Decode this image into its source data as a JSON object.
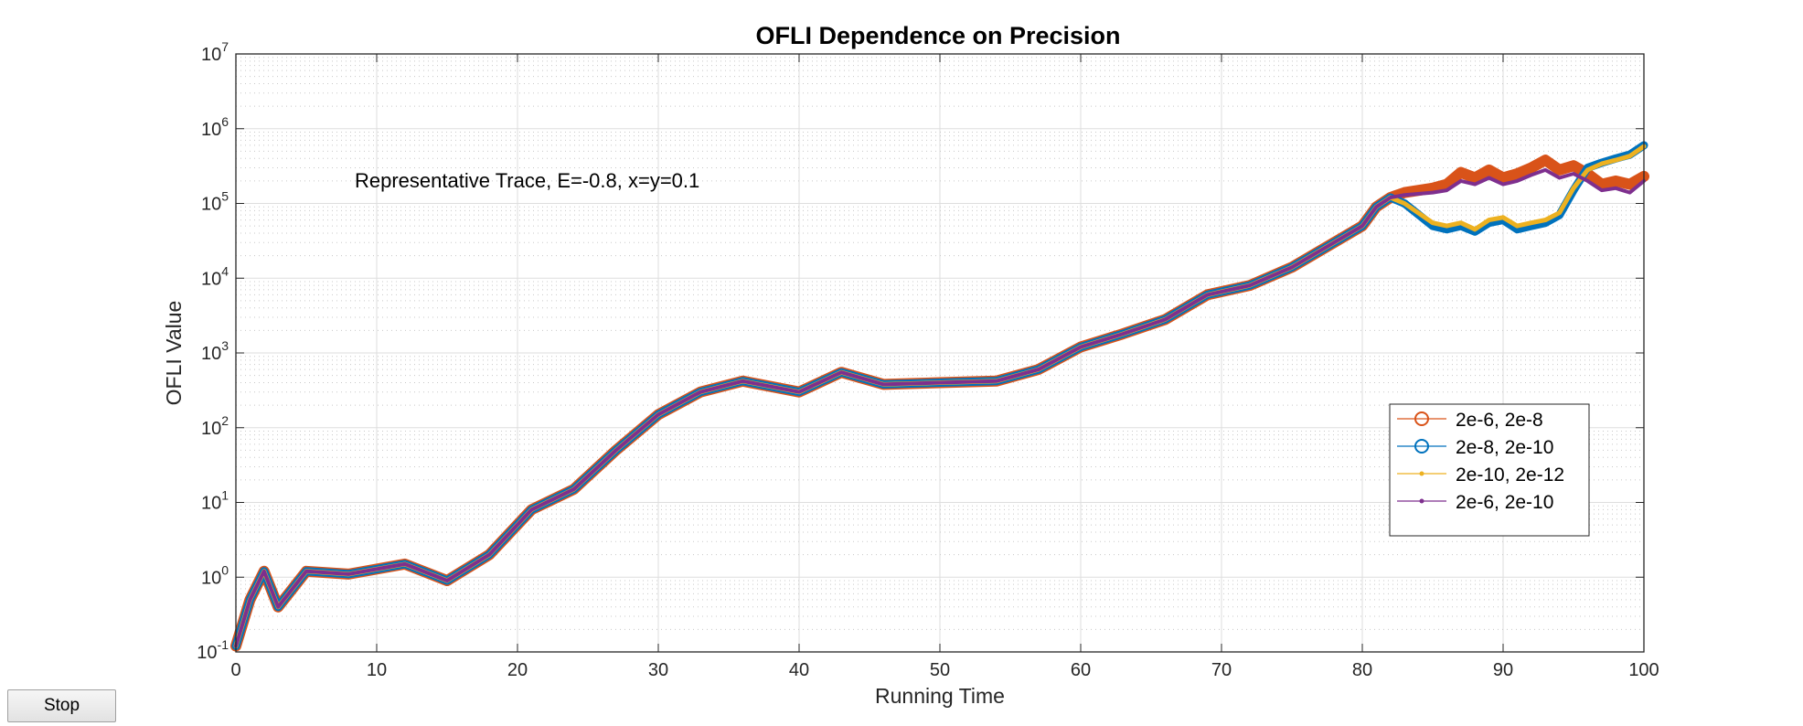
{
  "controls": {
    "stop_label": "Stop"
  },
  "chart_data": {
    "type": "line",
    "title": "OFLI Dependence on Precision",
    "xlabel": "Running Time",
    "ylabel": "OFLI Value",
    "xlim": [
      0,
      100
    ],
    "ylim": [
      0.1,
      10000000
    ],
    "yscale": "log",
    "grid": true,
    "minor_grid": true,
    "xticks": [
      0,
      10,
      20,
      30,
      40,
      50,
      60,
      70,
      80,
      90,
      100
    ],
    "yticks": [
      {
        "base": "10",
        "exp": "-1"
      },
      {
        "base": "10",
        "exp": "0"
      },
      {
        "base": "10",
        "exp": "1"
      },
      {
        "base": "10",
        "exp": "2"
      },
      {
        "base": "10",
        "exp": "3"
      },
      {
        "base": "10",
        "exp": "4"
      },
      {
        "base": "10",
        "exp": "5"
      },
      {
        "base": "10",
        "exp": "6"
      },
      {
        "base": "10",
        "exp": "7"
      }
    ],
    "annotation": "Representative Trace, E=-0.8, x=y=0.1",
    "legend_position": "right",
    "series": [
      {
        "name": "2e-6, 2e-8",
        "color": "#D95319",
        "marker": "circle",
        "x": [
          0,
          1,
          2,
          3,
          5,
          8,
          12,
          15,
          18,
          21,
          24,
          27,
          30,
          33,
          36,
          40,
          43,
          46,
          50,
          54,
          57,
          60,
          63,
          66,
          69,
          72,
          75,
          78,
          80,
          81,
          82,
          83,
          85,
          86,
          87,
          88,
          89,
          90,
          91,
          92,
          93,
          94,
          95,
          96,
          97,
          98,
          99,
          100
        ],
        "y": [
          0.12,
          0.5,
          1.2,
          0.4,
          1.2,
          1.1,
          1.5,
          0.9,
          2.0,
          8,
          15,
          50,
          150,
          300,
          420,
          300,
          550,
          380,
          400,
          420,
          600,
          1200,
          1800,
          2800,
          6000,
          8000,
          14000,
          30000,
          50000,
          90000,
          120000,
          140000,
          160000,
          180000,
          260000,
          220000,
          280000,
          220000,
          250000,
          300000,
          380000,
          280000,
          320000,
          250000,
          180000,
          200000,
          180000,
          230000
        ]
      },
      {
        "name": "2e-8, 2e-10",
        "color": "#0072BD",
        "marker": "circle",
        "x": [
          0,
          1,
          2,
          3,
          5,
          8,
          12,
          15,
          18,
          21,
          24,
          27,
          30,
          33,
          36,
          40,
          43,
          46,
          50,
          54,
          57,
          60,
          63,
          66,
          69,
          72,
          75,
          78,
          80,
          81,
          82,
          83,
          85,
          86,
          87,
          88,
          89,
          90,
          91,
          92,
          93,
          94,
          95,
          96,
          97,
          98,
          99,
          100
        ],
        "y": [
          0.12,
          0.5,
          1.2,
          0.4,
          1.2,
          1.1,
          1.5,
          0.9,
          2.0,
          8,
          15,
          50,
          150,
          300,
          420,
          300,
          550,
          380,
          400,
          420,
          600,
          1200,
          1800,
          2800,
          6000,
          8000,
          14000,
          30000,
          50000,
          90000,
          120000,
          100000,
          50000,
          45000,
          50000,
          42000,
          55000,
          60000,
          45000,
          50000,
          55000,
          70000,
          150000,
          300000,
          350000,
          400000,
          450000,
          600000
        ]
      },
      {
        "name": "2e-10, 2e-12",
        "color": "#EDB120",
        "marker": "point",
        "x": [
          0,
          1,
          2,
          3,
          5,
          8,
          12,
          15,
          18,
          21,
          24,
          27,
          30,
          33,
          36,
          40,
          43,
          46,
          50,
          54,
          57,
          60,
          63,
          66,
          69,
          72,
          75,
          78,
          80,
          81,
          82,
          83,
          85,
          86,
          87,
          88,
          89,
          90,
          91,
          92,
          93,
          94,
          95,
          96,
          97,
          98,
          99,
          100
        ],
        "y": [
          0.12,
          0.5,
          1.2,
          0.4,
          1.2,
          1.1,
          1.5,
          0.9,
          2.0,
          8,
          15,
          50,
          150,
          300,
          420,
          300,
          550,
          380,
          400,
          420,
          600,
          1200,
          1800,
          2800,
          6000,
          8000,
          14000,
          30000,
          50000,
          90000,
          120000,
          100000,
          55000,
          50000,
          55000,
          45000,
          60000,
          65000,
          50000,
          55000,
          60000,
          75000,
          160000,
          280000,
          340000,
          380000,
          430000,
          580000
        ]
      },
      {
        "name": "2e-6, 2e-10",
        "color": "#7E2F8E",
        "marker": "point",
        "x": [
          0,
          1,
          2,
          3,
          5,
          8,
          12,
          15,
          18,
          21,
          24,
          27,
          30,
          33,
          36,
          40,
          43,
          46,
          50,
          54,
          57,
          60,
          63,
          66,
          69,
          72,
          75,
          78,
          80,
          81,
          82,
          83,
          85,
          86,
          87,
          88,
          89,
          90,
          91,
          92,
          93,
          94,
          95,
          96,
          97,
          98,
          99,
          100
        ],
        "y": [
          0.12,
          0.5,
          1.2,
          0.4,
          1.2,
          1.1,
          1.5,
          0.9,
          2.0,
          8,
          15,
          50,
          150,
          300,
          420,
          300,
          550,
          380,
          400,
          420,
          600,
          1200,
          1800,
          2800,
          6000,
          8000,
          14000,
          30000,
          50000,
          90000,
          120000,
          130000,
          140000,
          150000,
          200000,
          180000,
          220000,
          180000,
          200000,
          240000,
          280000,
          220000,
          250000,
          200000,
          150000,
          160000,
          140000,
          200000
        ]
      }
    ]
  }
}
